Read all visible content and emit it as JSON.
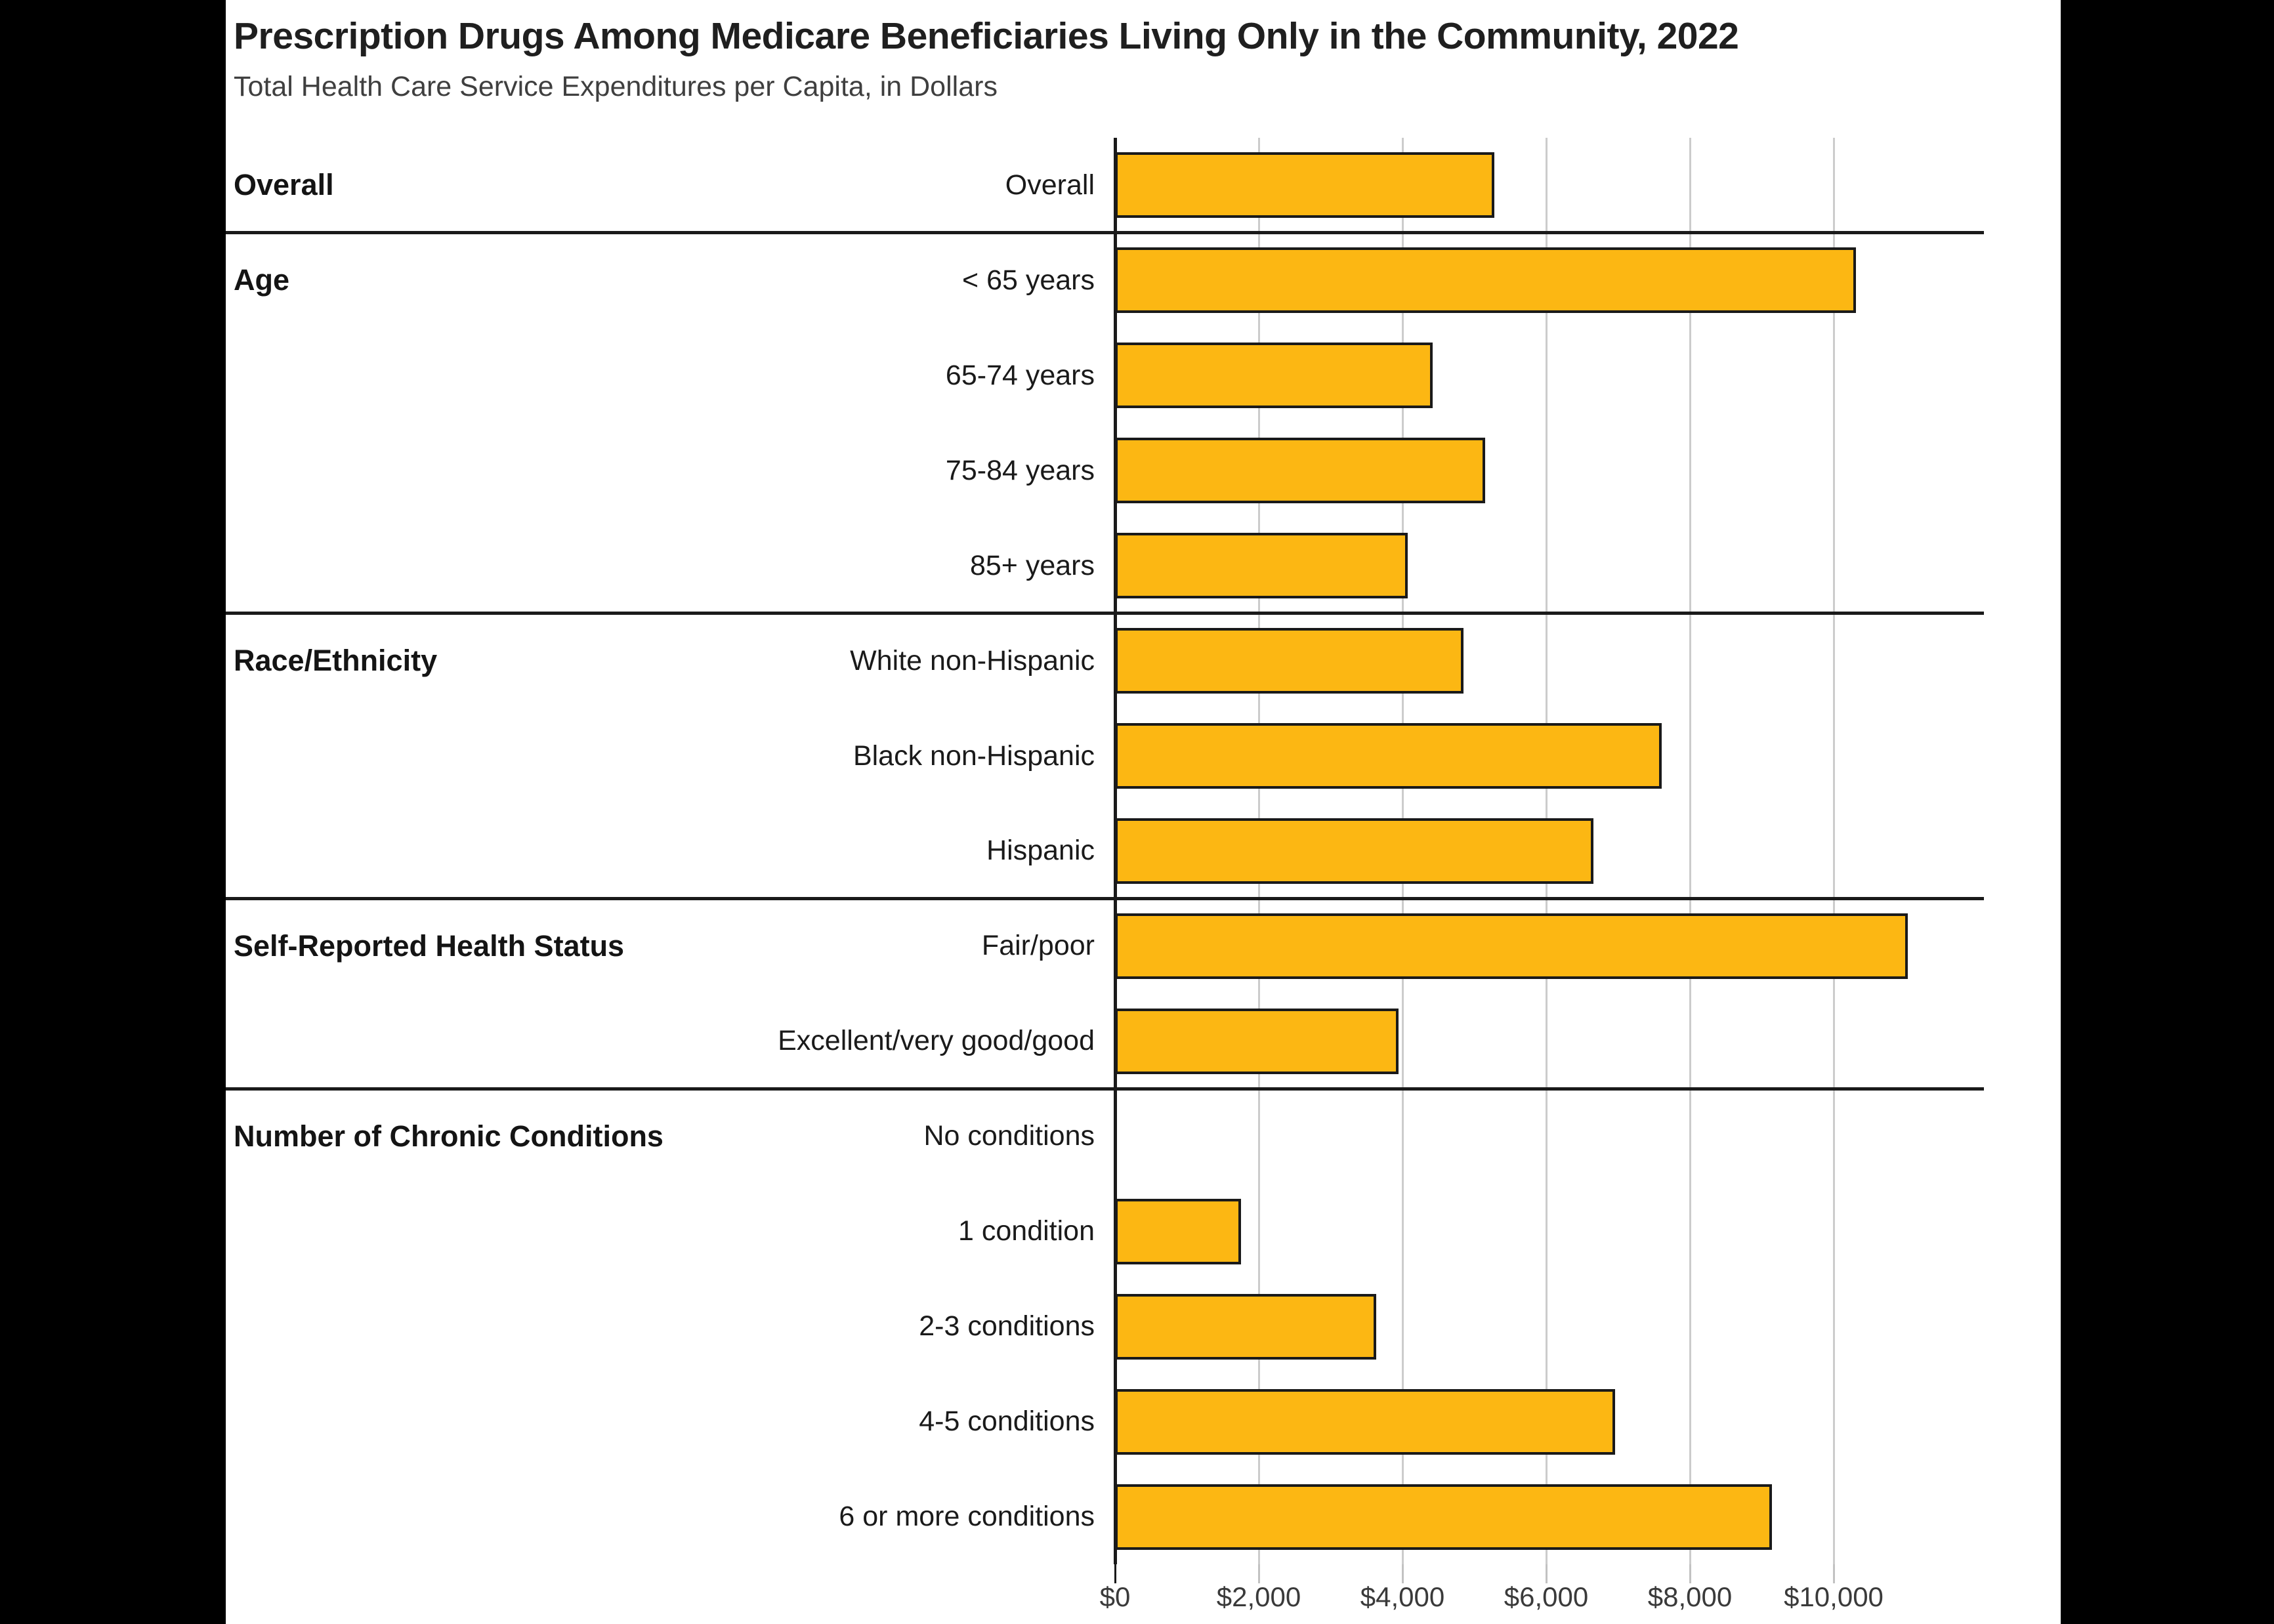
{
  "header": {
    "title": "Prescription Drugs Among Medicare Beneficiaries Living Only in the Community, 2022",
    "subtitle": "Total Health Care Service Expenditures per Capita, in Dollars"
  },
  "chart_data": {
    "type": "bar",
    "orientation": "horizontal",
    "title": "Prescription Drugs Among Medicare Beneficiaries Living Only in the Community, 2022",
    "subtitle": "Total Health Care Service Expenditures per Capita, in Dollars",
    "xlabel": "",
    "ylabel": "",
    "xlim": [
      0,
      12000
    ],
    "grid": true,
    "legend": "none",
    "bar_color": "#FCB713",
    "bar_border_color": "#1A1A1A",
    "gridline_color": "#CCCCCC",
    "x_ticks": [
      {
        "label": "$0",
        "value": 0
      },
      {
        "label": "$2,000",
        "value": 2000
      },
      {
        "label": "$4,000",
        "value": 4000
      },
      {
        "label": "$6,000",
        "value": 6000
      },
      {
        "label": "$8,000",
        "value": 8000
      },
      {
        "label": "$10,000",
        "value": 10000
      }
    ],
    "groups": [
      {
        "name": "Overall",
        "rows": [
          {
            "label": "Overall",
            "value": 5280
          }
        ]
      },
      {
        "name": "Age",
        "rows": [
          {
            "label": "< 65 years",
            "value": 10310
          },
          {
            "label": "65-74 years",
            "value": 4420
          },
          {
            "label": "75-84 years",
            "value": 5155
          },
          {
            "label": "85+ years",
            "value": 4070
          }
        ]
      },
      {
        "name": "Race/Ethnicity",
        "rows": [
          {
            "label": "White non-Hispanic",
            "value": 4850
          },
          {
            "label": "Black non-Hispanic",
            "value": 7610
          },
          {
            "label": "Hispanic",
            "value": 6660
          }
        ]
      },
      {
        "name": "Self-Reported Health Status",
        "rows": [
          {
            "label": "Fair/poor",
            "value": 11030
          },
          {
            "label": "Excellent/very good/good",
            "value": 3945
          }
        ]
      },
      {
        "name": "Number of Chronic Conditions",
        "rows": [
          {
            "label": "No conditions",
            "value": 0
          },
          {
            "label": "1 condition",
            "value": 1755
          },
          {
            "label": "2-3 conditions",
            "value": 3635
          },
          {
            "label": "4-5 conditions",
            "value": 6960
          },
          {
            "label": "6 or more conditions",
            "value": 9140
          }
        ]
      }
    ],
    "categories": [
      "Overall",
      "< 65 years",
      "65-74 years",
      "75-84 years",
      "85+ years",
      "White non-Hispanic",
      "Black non-Hispanic",
      "Hispanic",
      "Fair/poor",
      "Excellent/very good/good",
      "No conditions",
      "1 condition",
      "2-3 conditions",
      "4-5 conditions",
      "6 or more conditions"
    ],
    "values": [
      5280,
      10310,
      4420,
      5155,
      4070,
      4850,
      7610,
      6660,
      11030,
      3945,
      0,
      1755,
      3635,
      6960,
      9140
    ]
  }
}
